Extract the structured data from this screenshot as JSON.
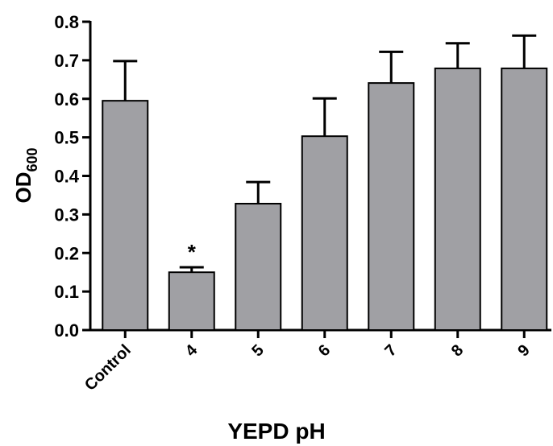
{
  "chart_data": {
    "type": "bar",
    "x_label": "YEPD pH",
    "y_label": "OD",
    "y_label_subscript": "600",
    "categories": [
      "Control",
      "4",
      "5",
      "6",
      "7",
      "8",
      "9"
    ],
    "values": [
      0.595,
      0.15,
      0.328,
      0.503,
      0.641,
      0.679,
      0.679
    ],
    "errors": [
      0.103,
      0.013,
      0.056,
      0.098,
      0.081,
      0.065,
      0.085
    ],
    "color": "#a0a0a4",
    "annotations": [
      {
        "category": "4",
        "text": "*"
      }
    ],
    "ylim": [
      0,
      0.8
    ],
    "yticks": [
      {
        "value": 0,
        "label": "0.0"
      },
      0.1,
      0.2,
      0.3,
      0.4,
      0.5,
      0.6,
      0.7,
      0.8
    ],
    "grid": false
  }
}
